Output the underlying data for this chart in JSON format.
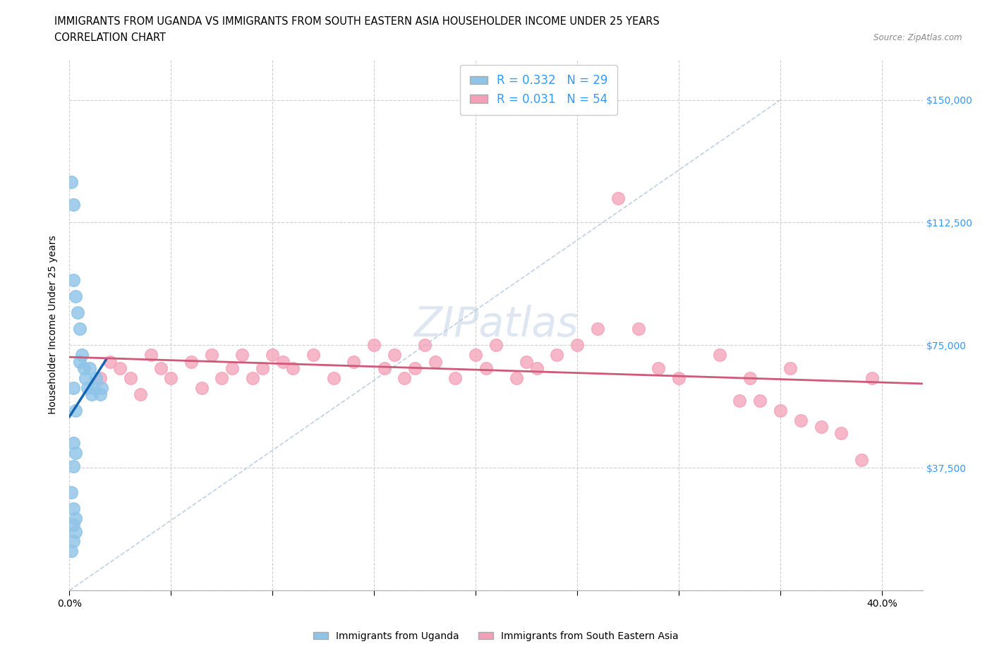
{
  "title_line1": "IMMIGRANTS FROM UGANDA VS IMMIGRANTS FROM SOUTH EASTERN ASIA HOUSEHOLDER INCOME UNDER 25 YEARS",
  "title_line2": "CORRELATION CHART",
  "source_text": "Source: ZipAtlas.com",
  "ylabel": "Householder Income Under 25 years",
  "xlim": [
    0.0,
    0.42
  ],
  "ylim": [
    0,
    162500
  ],
  "yticks": [
    0,
    37500,
    75000,
    112500,
    150000
  ],
  "xticks": [
    0.0,
    0.05,
    0.1,
    0.15,
    0.2,
    0.25,
    0.3,
    0.35,
    0.4
  ],
  "xtick_labels": [
    "0.0%",
    "",
    "",
    "",
    "",
    "",
    "",
    "",
    "40.0%"
  ],
  "r_uganda": 0.332,
  "n_uganda": 29,
  "r_sea": 0.031,
  "n_sea": 54,
  "color_uganda": "#8ec4e8",
  "color_sea": "#f4a0b8",
  "trendline_uganda": "#1464b4",
  "trendline_sea": "#d05878",
  "diag_color": "#b8cce4",
  "grid_color": "#d0d0d0",
  "background_color": "#ffffff",
  "title_fontsize": 10.5,
  "axis_label_fontsize": 10,
  "tick_fontsize": 10,
  "legend_r_color": "#3399ff",
  "ytick_color_right": "#3399ff",
  "uganda_x": [
    0.002,
    0.003,
    0.003,
    0.004,
    0.005,
    0.005,
    0.006,
    0.007,
    0.008,
    0.009,
    0.01,
    0.011,
    0.012,
    0.013,
    0.015,
    0.016,
    0.001,
    0.002,
    0.002,
    0.002,
    0.002,
    0.003,
    0.001,
    0.002,
    0.002,
    0.003,
    0.002,
    0.003,
    0.001
  ],
  "uganda_y": [
    62000,
    55000,
    90000,
    85000,
    80000,
    70000,
    72000,
    68000,
    65000,
    62000,
    68000,
    60000,
    62000,
    65000,
    60000,
    62000,
    125000,
    118000,
    95000,
    45000,
    38000,
    42000,
    30000,
    25000,
    20000,
    22000,
    15000,
    18000,
    12000
  ],
  "sea_x": [
    0.015,
    0.02,
    0.025,
    0.03,
    0.035,
    0.04,
    0.045,
    0.05,
    0.06,
    0.065,
    0.07,
    0.075,
    0.08,
    0.085,
    0.09,
    0.095,
    0.1,
    0.105,
    0.11,
    0.12,
    0.13,
    0.14,
    0.15,
    0.155,
    0.16,
    0.165,
    0.17,
    0.175,
    0.18,
    0.19,
    0.2,
    0.205,
    0.21,
    0.22,
    0.225,
    0.23,
    0.24,
    0.25,
    0.26,
    0.27,
    0.28,
    0.29,
    0.3,
    0.32,
    0.33,
    0.335,
    0.34,
    0.35,
    0.355,
    0.36,
    0.37,
    0.38,
    0.39,
    0.395
  ],
  "sea_y": [
    65000,
    70000,
    68000,
    65000,
    60000,
    72000,
    68000,
    65000,
    70000,
    62000,
    72000,
    65000,
    68000,
    72000,
    65000,
    68000,
    72000,
    70000,
    68000,
    72000,
    65000,
    70000,
    75000,
    68000,
    72000,
    65000,
    68000,
    75000,
    70000,
    65000,
    72000,
    68000,
    75000,
    65000,
    70000,
    68000,
    72000,
    75000,
    80000,
    120000,
    80000,
    68000,
    65000,
    72000,
    58000,
    65000,
    58000,
    55000,
    68000,
    52000,
    50000,
    48000,
    40000,
    65000
  ]
}
